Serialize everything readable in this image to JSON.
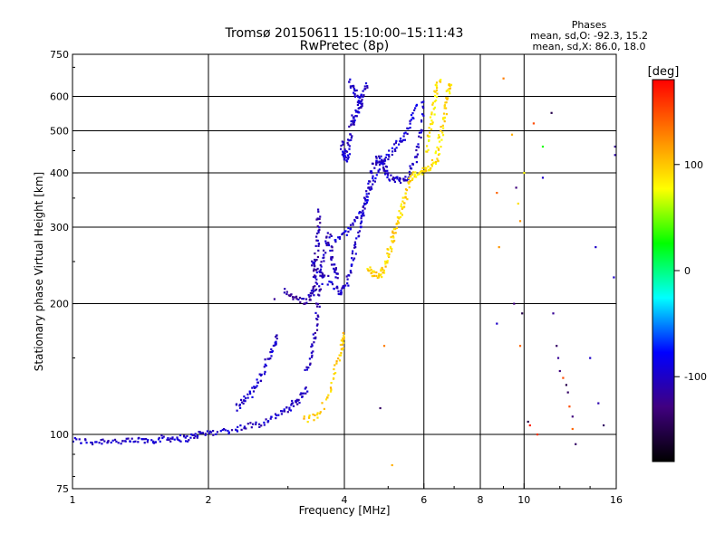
{
  "chart_data": {
    "type": "scatter",
    "title": "Tromsø 20150611 15:10:00–15:11:43",
    "subtitle": "RwPretec (8p)",
    "xlabel": "Frequency [MHz]",
    "ylabel": "Stationary phase Virtual Height [km]",
    "x_scale": "log",
    "y_scale": "log",
    "xlim": [
      1,
      16
    ],
    "ylim": [
      75,
      750
    ],
    "x_ticks": [
      1,
      2,
      4,
      6,
      8,
      10,
      16
    ],
    "x_tick_labels": [
      "1",
      "2",
      "4",
      "6",
      "8",
      "10",
      "16"
    ],
    "y_ticks": [
      75,
      100,
      200,
      300,
      400,
      500,
      600,
      750
    ],
    "y_tick_labels": [
      "75",
      "100",
      "200",
      "300",
      "400",
      "500",
      "600",
      "750"
    ],
    "x_grid": [
      2,
      4,
      6,
      8,
      10
    ],
    "y_grid": [
      100,
      200,
      300,
      400,
      500,
      600
    ],
    "grid": true,
    "phase_legend": {
      "title": "Phases",
      "line1": "mean, sd,O: -92.3, 15.2",
      "line2": "mean, sd,X:  86.0, 18.0"
    },
    "colorbar": {
      "unit": "[deg]",
      "min": -180,
      "max": 180,
      "ticks": [
        100,
        0,
        -100
      ],
      "tick_labels": [
        "100",
        "0",
        "-100"
      ],
      "colors": [
        "#ff0000",
        "#ff8000",
        "#ffff00",
        "#00ff00",
        "#00ffff",
        "#0000ff",
        "#400080",
        "#000000"
      ]
    },
    "traces": [
      {
        "name": "O trace low",
        "phase": -100,
        "points": [
          [
            1,
            97
          ],
          [
            1.1,
            96
          ],
          [
            1.2,
            97
          ],
          [
            1.3,
            96
          ],
          [
            1.4,
            97
          ],
          [
            1.5,
            97
          ],
          [
            1.6,
            98
          ],
          [
            1.7,
            98
          ],
          [
            1.8,
            98
          ],
          [
            1.9,
            100
          ],
          [
            2.0,
            101
          ],
          [
            2.2,
            102
          ],
          [
            2.4,
            104
          ],
          [
            2.6,
            106
          ],
          [
            2.8,
            110
          ],
          [
            3.0,
            114
          ],
          [
            3.1,
            118
          ],
          [
            3.2,
            122
          ],
          [
            3.3,
            128
          ]
        ]
      },
      {
        "name": "O trace E rise",
        "phase": -100,
        "points": [
          [
            2.3,
            115
          ],
          [
            2.4,
            120
          ],
          [
            2.5,
            125
          ],
          [
            2.6,
            135
          ],
          [
            2.7,
            148
          ],
          [
            2.8,
            160
          ],
          [
            2.85,
            170
          ]
        ]
      },
      {
        "name": "O trace F1 cusp",
        "phase": -110,
        "points": [
          [
            2.95,
            215
          ],
          [
            3.1,
            205
          ],
          [
            3.3,
            203
          ],
          [
            3.4,
            210
          ],
          [
            3.45,
            220
          ],
          [
            3.45,
            240
          ],
          [
            3.48,
            270
          ],
          [
            3.5,
            300
          ],
          [
            3.5,
            330
          ]
        ]
      },
      {
        "name": "O trace F1 spread",
        "phase": -105,
        "points": [
          [
            3.3,
            140
          ],
          [
            3.4,
            155
          ],
          [
            3.45,
            175
          ],
          [
            3.5,
            200
          ],
          [
            3.55,
            230
          ],
          [
            3.6,
            260
          ],
          [
            3.7,
            290
          ],
          [
            3.75,
            260
          ],
          [
            3.8,
            240
          ],
          [
            3.85,
            230
          ]
        ]
      },
      {
        "name": "O trace F2a",
        "phase": -100,
        "points": [
          [
            3.4,
            250
          ],
          [
            3.5,
            240
          ],
          [
            3.7,
            225
          ],
          [
            3.9,
            212
          ],
          [
            4.0,
            215
          ],
          [
            4.1,
            235
          ],
          [
            4.2,
            260
          ],
          [
            4.3,
            290
          ],
          [
            4.4,
            320
          ],
          [
            4.5,
            360
          ],
          [
            4.6,
            400
          ],
          [
            4.7,
            430
          ],
          [
            4.8,
            430
          ],
          [
            4.9,
            410
          ],
          [
            5.0,
            395
          ],
          [
            5.2,
            385
          ],
          [
            5.4,
            385
          ],
          [
            5.6,
            400
          ],
          [
            5.8,
            440
          ],
          [
            5.9,
            500
          ],
          [
            6.0,
            600
          ]
        ]
      },
      {
        "name": "O trace F2b",
        "phase": -95,
        "points": [
          [
            3.8,
            280
          ],
          [
            4.0,
            290
          ],
          [
            4.2,
            310
          ],
          [
            4.4,
            330
          ],
          [
            4.6,
            370
          ],
          [
            4.8,
            420
          ],
          [
            5.0,
            440
          ],
          [
            5.2,
            460
          ],
          [
            5.4,
            480
          ],
          [
            5.6,
            520
          ],
          [
            5.8,
            580
          ]
        ]
      },
      {
        "name": "O trace upper",
        "phase": -100,
        "points": [
          [
            3.95,
            470
          ],
          [
            4.0,
            440
          ],
          [
            4.05,
            430
          ],
          [
            4.1,
            470
          ],
          [
            4.15,
            520
          ],
          [
            4.2,
            540
          ],
          [
            4.3,
            560
          ],
          [
            4.4,
            600
          ],
          [
            4.5,
            640
          ]
        ]
      },
      {
        "name": "O trace echo",
        "phase": -100,
        "points": [
          [
            4.1,
            650
          ],
          [
            4.2,
            620
          ],
          [
            4.3,
            590
          ],
          [
            4.35,
            560
          ]
        ]
      },
      {
        "name": "X trace low",
        "phase": 100,
        "points": [
          [
            3.25,
            108
          ],
          [
            3.5,
            110
          ],
          [
            3.7,
            125
          ],
          [
            3.85,
            145
          ],
          [
            3.95,
            160
          ],
          [
            4.0,
            170
          ]
        ]
      },
      {
        "name": "X trace F1",
        "phase": 95,
        "points": [
          [
            4.5,
            240
          ],
          [
            4.6,
            235
          ],
          [
            4.8,
            232
          ],
          [
            4.9,
            240
          ],
          [
            5.0,
            260
          ],
          [
            5.1,
            280
          ],
          [
            5.2,
            300
          ],
          [
            5.3,
            320
          ],
          [
            5.4,
            340
          ],
          [
            5.5,
            360
          ],
          [
            5.6,
            390
          ]
        ]
      },
      {
        "name": "X trace F2",
        "phase": 90,
        "points": [
          [
            5.6,
            390
          ],
          [
            5.8,
            400
          ],
          [
            6.0,
            405
          ],
          [
            6.2,
            410
          ],
          [
            6.4,
            430
          ],
          [
            6.5,
            470
          ],
          [
            6.6,
            520
          ],
          [
            6.7,
            560
          ],
          [
            6.8,
            620
          ],
          [
            6.9,
            650
          ]
        ]
      },
      {
        "name": "X trace F2b",
        "phase": 85,
        "points": [
          [
            6.1,
            450
          ],
          [
            6.2,
            500
          ],
          [
            6.3,
            560
          ],
          [
            6.4,
            620
          ],
          [
            6.5,
            660
          ]
        ]
      }
    ],
    "scatter_points": [
      [
        8.7,
        360,
        140
      ],
      [
        8.8,
        270,
        120
      ],
      [
        8.7,
        180,
        -100
      ],
      [
        9.0,
        660,
        130
      ],
      [
        9.4,
        490,
        110
      ],
      [
        9.5,
        200,
        -130
      ],
      [
        9.6,
        370,
        -130
      ],
      [
        9.7,
        340,
        90
      ],
      [
        9.8,
        310,
        120
      ],
      [
        9.8,
        160,
        140
      ],
      [
        9.9,
        190,
        -150
      ],
      [
        10.0,
        400,
        80
      ],
      [
        10.2,
        107,
        -150
      ],
      [
        10.3,
        105,
        170
      ],
      [
        10.5,
        520,
        150
      ],
      [
        10.7,
        100,
        160
      ],
      [
        11.0,
        460,
        30
      ],
      [
        11.0,
        390,
        -100
      ],
      [
        11.5,
        550,
        -150
      ],
      [
        11.6,
        190,
        -120
      ],
      [
        11.8,
        160,
        -140
      ],
      [
        11.9,
        150,
        -120
      ],
      [
        12.0,
        140,
        -130
      ],
      [
        12.2,
        135,
        150
      ],
      [
        12.4,
        130,
        -150
      ],
      [
        12.5,
        125,
        -140
      ],
      [
        12.6,
        116,
        150
      ],
      [
        12.8,
        110,
        -130
      ],
      [
        12.8,
        103,
        140
      ],
      [
        13.0,
        95,
        -140
      ],
      [
        14.0,
        150,
        -100
      ],
      [
        14.4,
        270,
        -100
      ],
      [
        14.6,
        118,
        -110
      ],
      [
        15.0,
        105,
        -140
      ],
      [
        15.8,
        230,
        -100
      ],
      [
        15.9,
        440,
        -110
      ],
      [
        15.9,
        460,
        -120
      ],
      [
        2.8,
        205,
        -120
      ],
      [
        4.9,
        160,
        130
      ],
      [
        5.1,
        85,
        110
      ],
      [
        4.8,
        115,
        -140
      ]
    ]
  }
}
